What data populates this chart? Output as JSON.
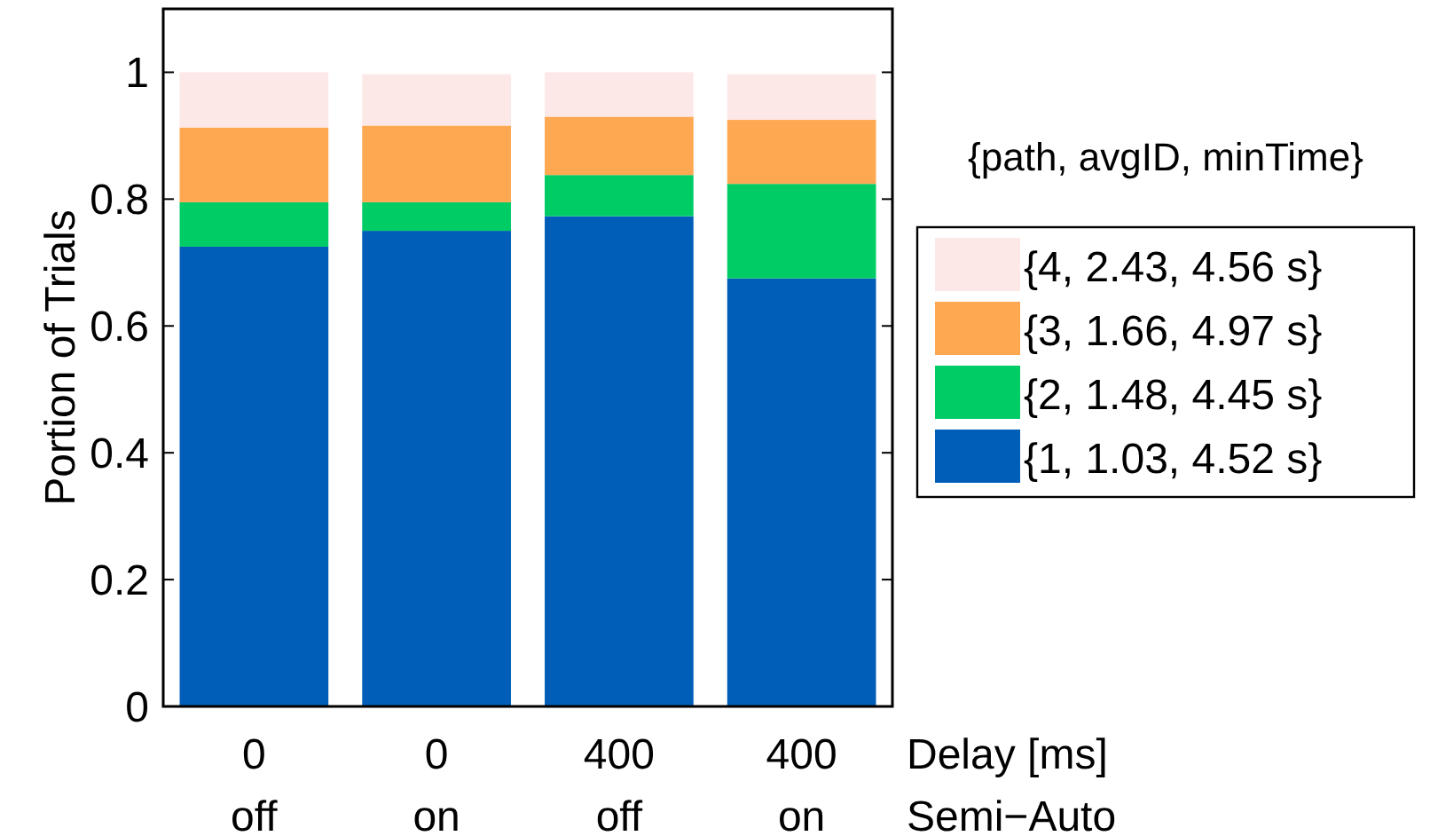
{
  "chart_data": {
    "type": "bar",
    "stacked": true,
    "ylabel": "Portion of Trials",
    "xlabel": "Delay [ms]\nSemi−Auto",
    "legend_title": "{path, avgID, minTime}",
    "legend": "right",
    "categories": [
      "0\noff",
      "0\non",
      "400\noff",
      "400\non"
    ],
    "ylim": [
      0,
      1.1
    ],
    "yticks": [
      0,
      0.2,
      0.4,
      0.6,
      0.8,
      1
    ],
    "series": [
      {
        "name": "{1, 1.03, 4.52 s}",
        "color": "#005eb8",
        "values": [
          0.725,
          0.75,
          0.773,
          0.675
        ]
      },
      {
        "name": "{2, 1.48, 4.45 s}",
        "color": "#00cc66",
        "values": [
          0.07,
          0.045,
          0.065,
          0.149
        ]
      },
      {
        "name": "{3, 1.66, 4.97 s}",
        "color": "#ffa852",
        "values": [
          0.118,
          0.121,
          0.092,
          0.101
        ]
      },
      {
        "name": "{4, 2.43, 4.56 s}",
        "color": "#fde8e8",
        "values": [
          0.087,
          0.081,
          0.07,
          0.072
        ]
      }
    ]
  }
}
